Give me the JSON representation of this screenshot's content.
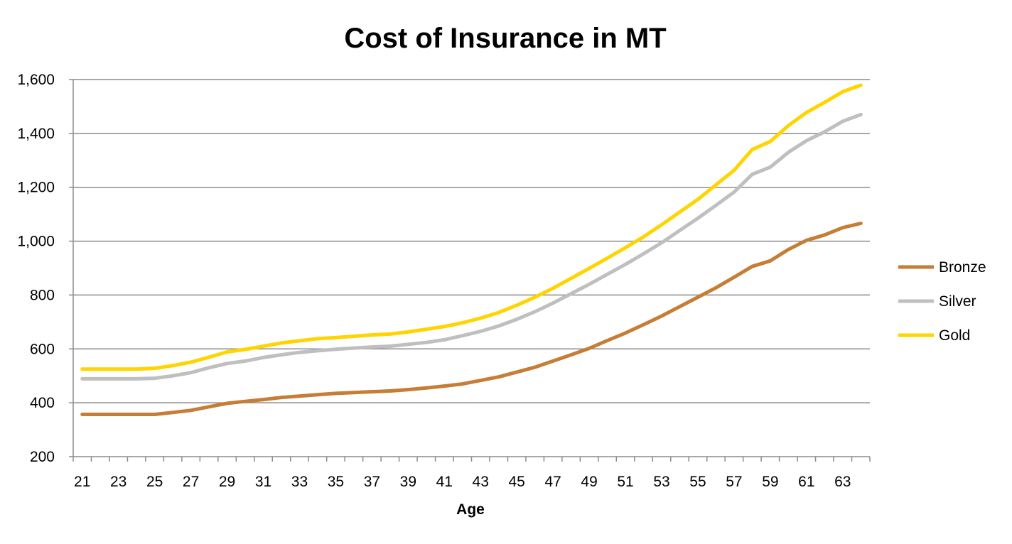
{
  "chart_data": {
    "type": "line",
    "title": "Cost of Insurance in MT",
    "xlabel": "Age",
    "ylabel": "",
    "ylim": [
      200,
      1600
    ],
    "yticks": [
      200,
      400,
      600,
      800,
      1000,
      1200,
      1400,
      1600
    ],
    "ytick_labels": [
      "200",
      "400",
      "600",
      "800",
      "1,000",
      "1,200",
      "1,400",
      "1,600"
    ],
    "xtick_labels": [
      "21",
      "23",
      "25",
      "27",
      "29",
      "31",
      "33",
      "35",
      "37",
      "39",
      "41",
      "43",
      "45",
      "47",
      "49",
      "51",
      "53",
      "55",
      "57",
      "59",
      "61",
      "63"
    ],
    "grid": "horizontal",
    "legend": "right",
    "x": [
      21,
      22,
      23,
      24,
      25,
      26,
      27,
      28,
      29,
      30,
      31,
      32,
      33,
      34,
      35,
      36,
      37,
      38,
      39,
      40,
      41,
      42,
      43,
      44,
      45,
      46,
      47,
      48,
      49,
      50,
      51,
      52,
      53,
      54,
      55,
      56,
      57,
      58,
      59,
      60,
      61,
      62,
      63,
      64
    ],
    "series": [
      {
        "name": "Bronze",
        "color": "#C67D36",
        "values": [
          357,
          357,
          357,
          357,
          357,
          364,
          372,
          385,
          398,
          405,
          412,
          420,
          425,
          430,
          435,
          438,
          441,
          444,
          449,
          455,
          462,
          470,
          483,
          496,
          514,
          532,
          555,
          578,
          602,
          631,
          659,
          690,
          722,
          757,
          792,
          827,
          866,
          906,
          927,
          969,
          1003,
          1023,
          1050,
          1066
        ]
      },
      {
        "name": "Silver",
        "color": "#BFBFBF",
        "values": [
          489,
          489,
          489,
          489,
          491,
          500,
          512,
          530,
          546,
          555,
          568,
          578,
          587,
          593,
          599,
          603,
          607,
          610,
          617,
          624,
          634,
          649,
          665,
          685,
          710,
          738,
          770,
          805,
          840,
          877,
          914,
          953,
          994,
          1040,
          1085,
          1133,
          1182,
          1248,
          1275,
          1330,
          1373,
          1406,
          1445,
          1470
        ]
      },
      {
        "name": "Gold",
        "color": "#FFD400",
        "values": [
          525,
          525,
          525,
          525,
          528,
          538,
          551,
          569,
          589,
          598,
          610,
          622,
          630,
          638,
          642,
          647,
          652,
          655,
          663,
          673,
          683,
          697,
          714,
          735,
          762,
          792,
          825,
          862,
          899,
          937,
          976,
          1016,
          1061,
          1108,
          1155,
          1209,
          1263,
          1340,
          1370,
          1429,
          1478,
          1515,
          1555,
          1579
        ]
      }
    ]
  }
}
